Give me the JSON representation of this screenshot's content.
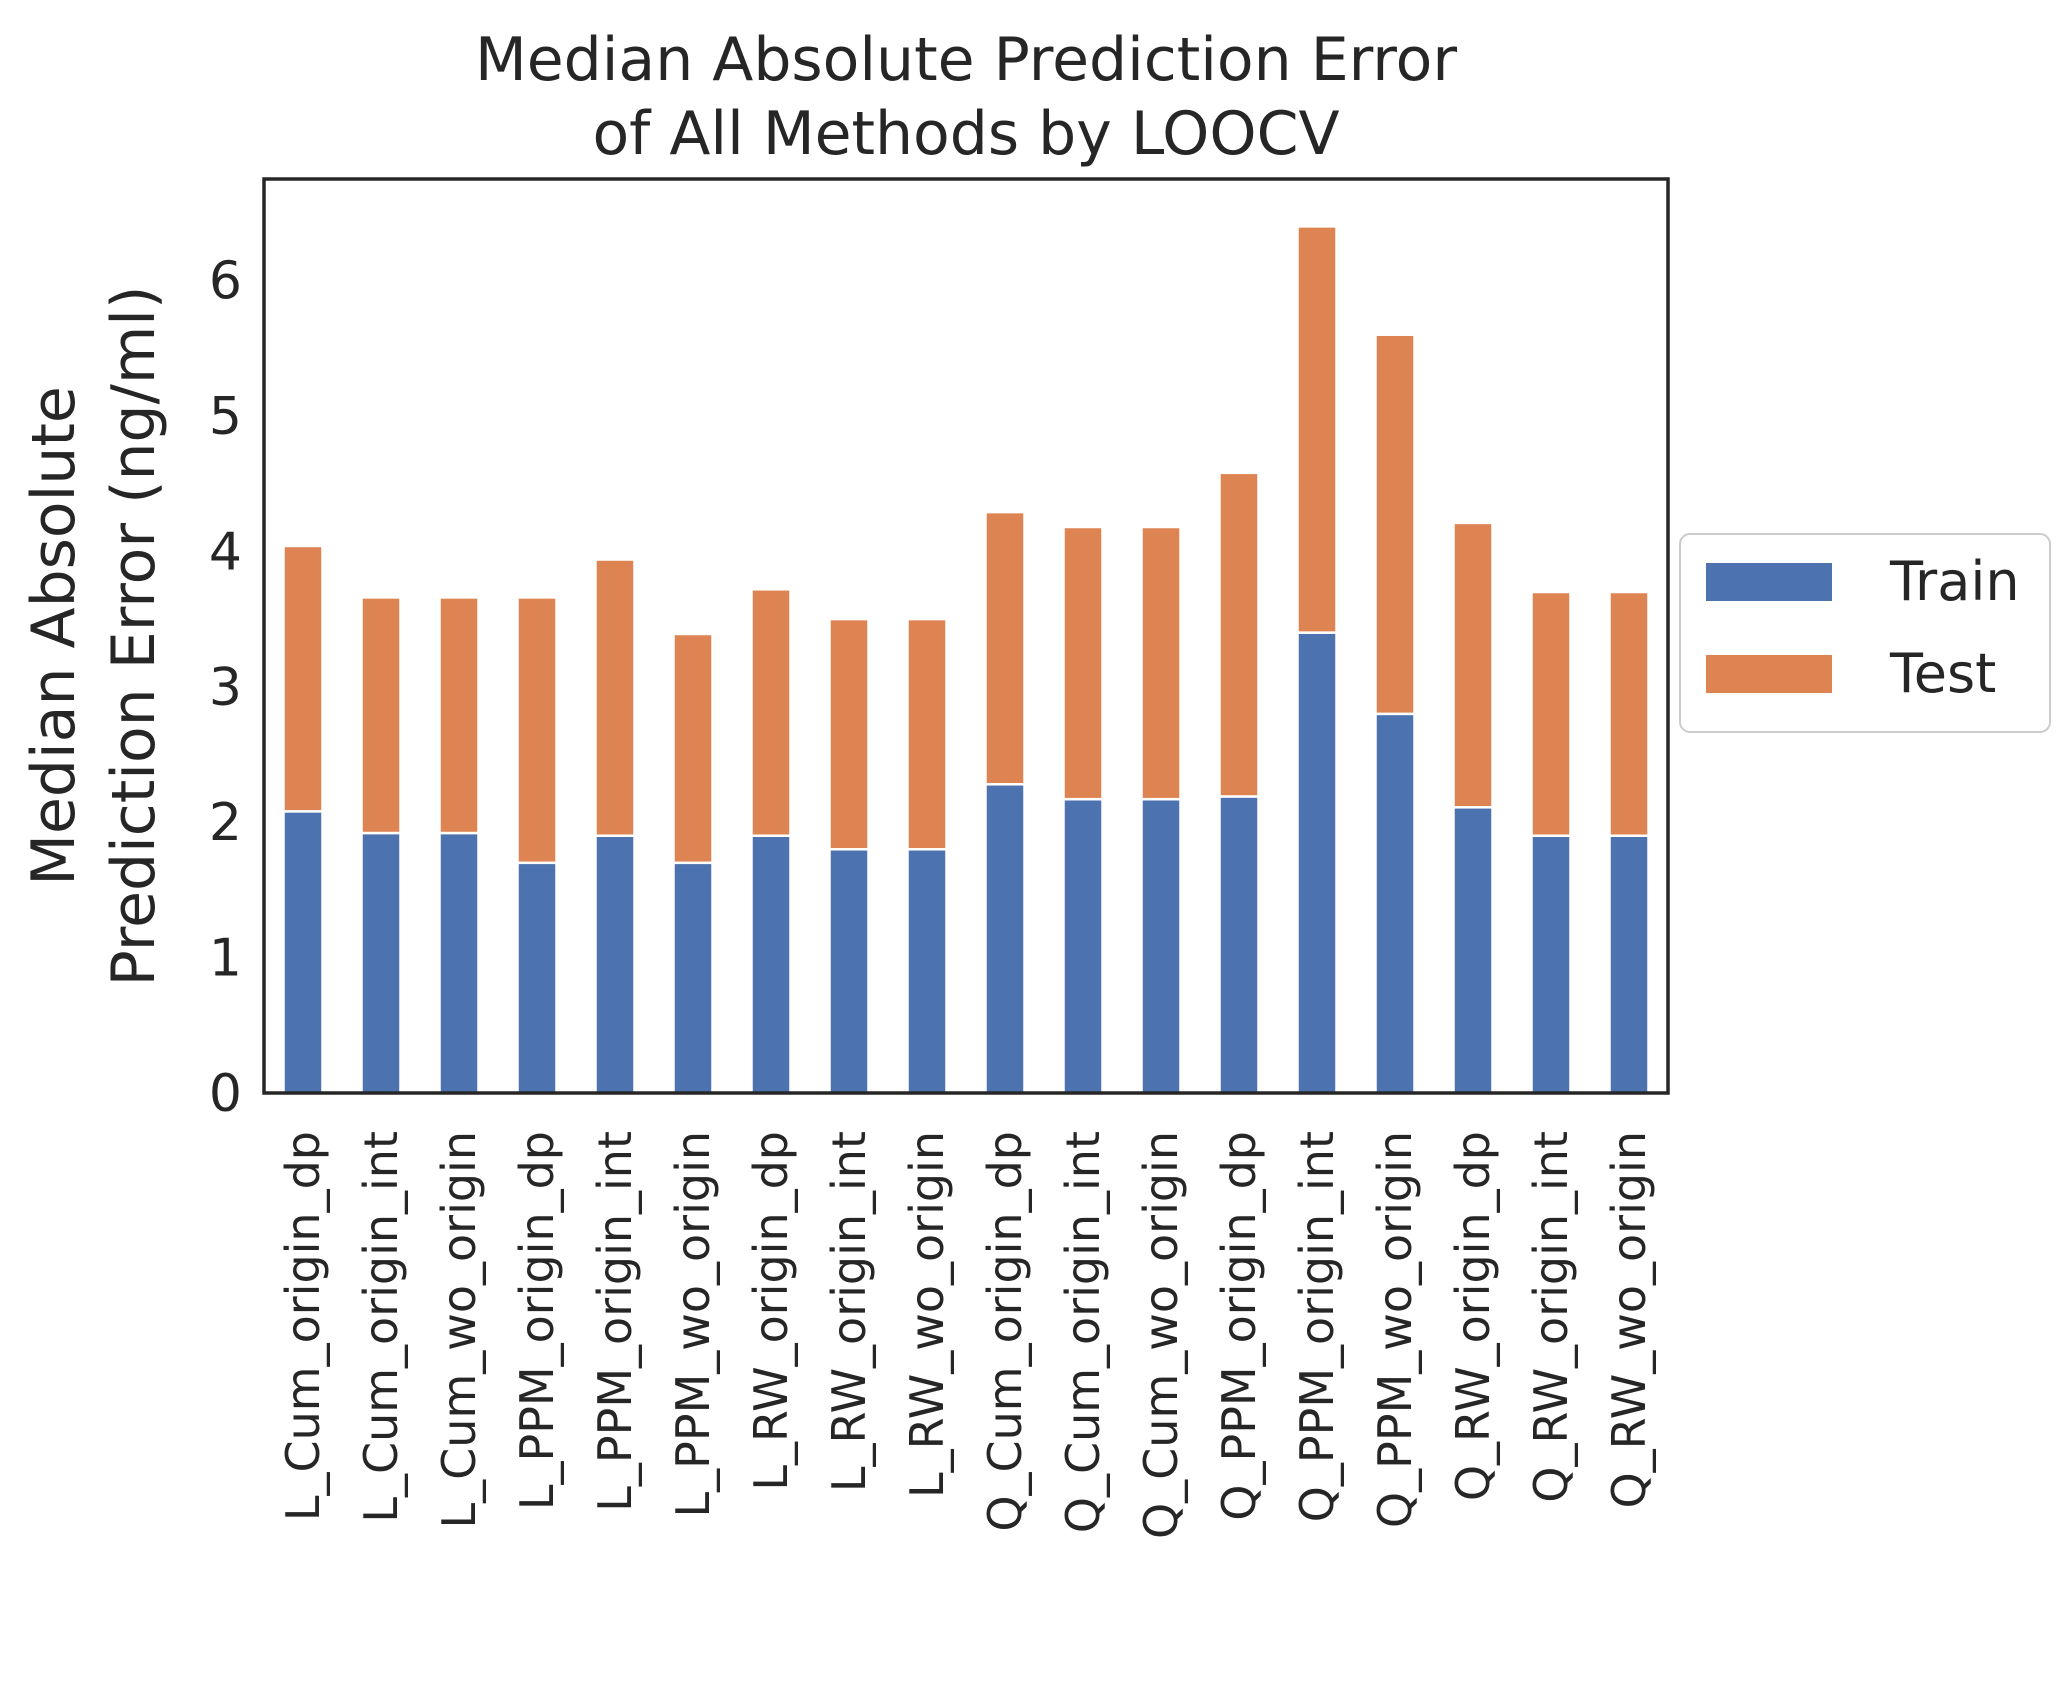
{
  "chart_data": {
    "type": "bar",
    "stacked": true,
    "title": "Median Absolute Prediction Error\nof All Methods by LOOCV",
    "xlabel": "",
    "ylabel": "Median Absolute\nPrediction Error (ng/ml)",
    "ylim": [
      0,
      6.75
    ],
    "yticks": [
      0,
      1,
      2,
      3,
      4,
      5,
      6
    ],
    "grid": false,
    "legend_position": "center-right outside",
    "categories": [
      "L_Cum_origin_dp",
      "L_Cum_origin_int",
      "L_Cum_wo_origin",
      "L_PPM_origin_dp",
      "L_PPM_origin_int",
      "L_PPM_wo_origin",
      "L_RW_origin_dp",
      "L_RW_origin_int",
      "L_RW_wo_origin",
      "Q_Cum_origin_dp",
      "Q_Cum_origin_int",
      "Q_Cum_wo_origin",
      "Q_PPM_origin_dp",
      "Q_PPM_origin_int",
      "Q_PPM_wo_origin",
      "Q_RW_origin_dp",
      "Q_RW_origin_int",
      "Q_RW_wo_origin"
    ],
    "series": [
      {
        "name": "Train",
        "color": "#4c72b0",
        "values": [
          2.08,
          1.92,
          1.92,
          1.7,
          1.9,
          1.7,
          1.9,
          1.8,
          1.8,
          2.28,
          2.17,
          2.17,
          2.19,
          3.4,
          2.8,
          2.11,
          1.9,
          1.9
        ]
      },
      {
        "name": "Test",
        "color": "#dd8452",
        "values": [
          1.96,
          1.74,
          1.74,
          1.96,
          2.04,
          1.69,
          1.82,
          1.7,
          1.7,
          2.01,
          2.01,
          2.01,
          2.39,
          3.0,
          2.8,
          2.1,
          1.8,
          1.8
        ]
      }
    ]
  }
}
